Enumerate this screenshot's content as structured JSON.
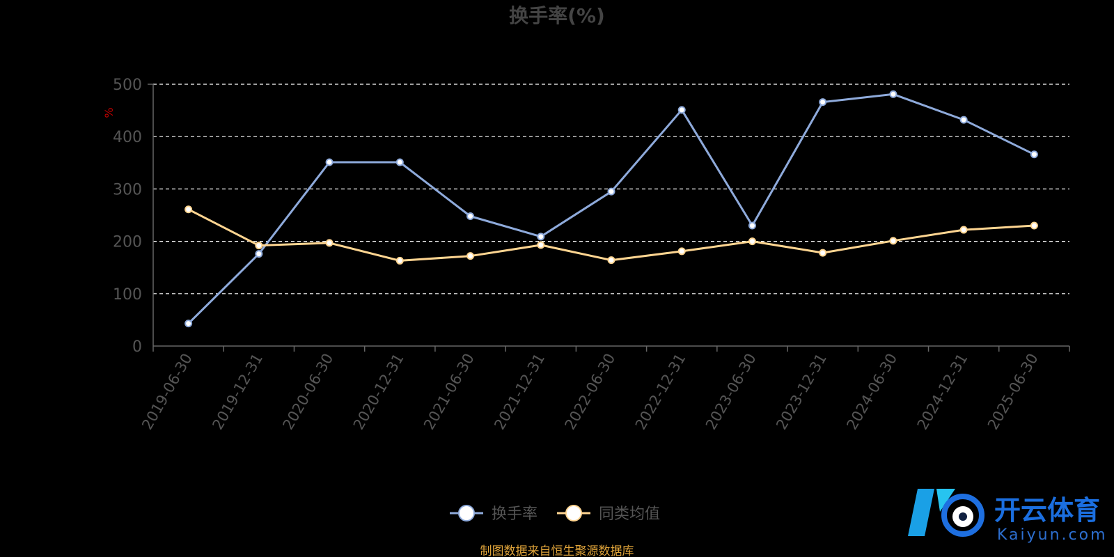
{
  "chart_data": {
    "type": "line",
    "title": "换手率(%)",
    "ylabel": "%",
    "ylim": [
      0,
      500
    ],
    "yticks": [
      0,
      100,
      200,
      300,
      400,
      500
    ],
    "grid": true,
    "legend_position": "bottom",
    "categories": [
      "2019-06-30",
      "2019-12-31",
      "2020-06-30",
      "2020-12-31",
      "2021-06-30",
      "2021-12-31",
      "2022-06-30",
      "2022-12-31",
      "2023-06-30",
      "2023-12-31",
      "2024-06-30",
      "2024-12-31",
      "2025-06-30"
    ],
    "series": [
      {
        "name": "换手率",
        "color": "#8eaadb",
        "values": [
          43,
          176,
          351,
          351,
          248,
          209,
          295,
          451,
          230,
          466,
          481,
          432,
          366
        ]
      },
      {
        "name": "同类均值",
        "color": "#ffd591",
        "values": [
          261,
          192,
          197,
          163,
          172,
          193,
          164,
          181,
          200,
          178,
          201,
          222,
          230
        ]
      }
    ]
  },
  "source_note": "制图数据来自恒生聚源数据库",
  "watermark": {
    "brand": "开云体育",
    "sub": "Kaiyun.com"
  },
  "colors": {
    "background": "#000000",
    "grid": "#ffffff",
    "axis": "#666666"
  }
}
